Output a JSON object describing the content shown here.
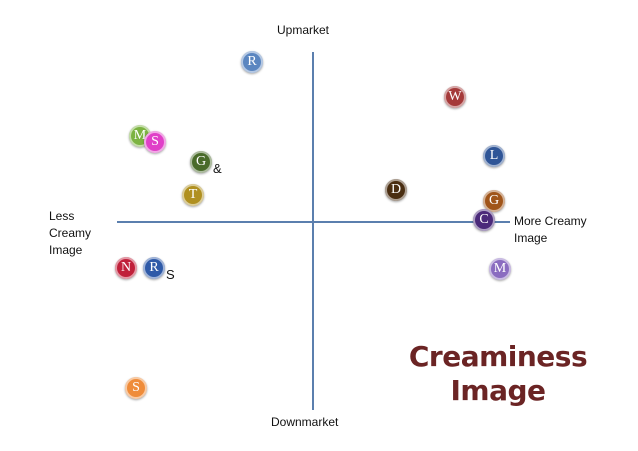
{
  "axes": {
    "top": "Upmarket",
    "bottom": "Downmarket",
    "left": "Less Creamy Image",
    "right": "More Creamy Image"
  },
  "title": "Creaminess Image",
  "nodes": [
    {
      "label": "R"
    },
    {
      "label": "W"
    },
    {
      "label": "M"
    },
    {
      "label": "S"
    },
    {
      "label": "G",
      "suffix": "&"
    },
    {
      "label": "L"
    },
    {
      "label": "D"
    },
    {
      "label": "T"
    },
    {
      "label": "G"
    },
    {
      "label": "C"
    },
    {
      "label": "N"
    },
    {
      "label": "R",
      "suffix": "S"
    },
    {
      "label": "M"
    },
    {
      "label": "S"
    }
  ]
}
